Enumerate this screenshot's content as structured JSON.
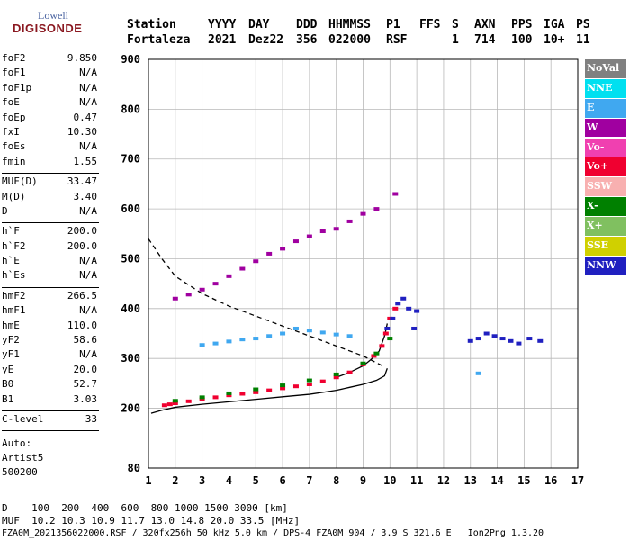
{
  "logo": {
    "line1": "Lowell",
    "line2": "DIGISONDE"
  },
  "header": {
    "labels": [
      "Station",
      "YYYY",
      "DAY",
      "DDD",
      "HHMMSS",
      "P1",
      "FFS",
      "S",
      "AXN",
      "PPS",
      "IGA",
      "PS"
    ],
    "values": [
      "Fortaleza",
      "2021",
      "Dez22",
      "356",
      "022000",
      "RSF",
      "1",
      "714",
      "100",
      "10+",
      "11"
    ]
  },
  "params_group1": [
    {
      "k": "foF2",
      "v": "9.850"
    },
    {
      "k": "foF1",
      "v": "N/A"
    },
    {
      "k": "foF1p",
      "v": "N/A"
    },
    {
      "k": "foE",
      "v": "N/A"
    },
    {
      "k": "foEp",
      "v": "0.47"
    },
    {
      "k": "fxI",
      "v": "10.30"
    },
    {
      "k": "foEs",
      "v": "N/A"
    },
    {
      "k": "fmin",
      "v": "1.55"
    }
  ],
  "params_group2": [
    {
      "k": "MUF(D)",
      "v": "33.47"
    },
    {
      "k": "M(D)",
      "v": "3.40"
    },
    {
      "k": "D",
      "v": "N/A"
    }
  ],
  "params_group3": [
    {
      "k": "h`F",
      "v": "200.0"
    },
    {
      "k": "h`F2",
      "v": "200.0"
    },
    {
      "k": "h`E",
      "v": "N/A"
    },
    {
      "k": "h`Es",
      "v": "N/A"
    }
  ],
  "params_group4": [
    {
      "k": "hmF2",
      "v": "266.5"
    },
    {
      "k": "hmF1",
      "v": "N/A"
    },
    {
      "k": "hmE",
      "v": "110.0"
    },
    {
      "k": "yF2",
      "v": "58.6"
    },
    {
      "k": "yF1",
      "v": "N/A"
    },
    {
      "k": "yE",
      "v": "20.0"
    },
    {
      "k": "B0",
      "v": "52.7"
    },
    {
      "k": "B1",
      "v": "3.03"
    }
  ],
  "params_group5": [
    {
      "k": "C-level",
      "v": "33"
    }
  ],
  "auto": {
    "line1": "Auto:",
    "line2": "Artist5",
    "line3": "500200"
  },
  "legend": [
    {
      "label": "NoVal",
      "color": "#808080"
    },
    {
      "label": "NNE",
      "color": "#00e0f0"
    },
    {
      "label": "E",
      "color": "#40a8f0"
    },
    {
      "label": "W",
      "color": "#a000a0"
    },
    {
      "label": "Vo-",
      "color": "#f040b0"
    },
    {
      "label": "Vo+",
      "color": "#f00030"
    },
    {
      "label": "SSW",
      "color": "#f8b0b0"
    },
    {
      "label": "X-",
      "color": "#008000"
    },
    {
      "label": "X+",
      "color": "#80c060"
    },
    {
      "label": "SSE",
      "color": "#d0d000"
    },
    {
      "label": "NNW",
      "color": "#2020c0"
    }
  ],
  "footer": {
    "line1": "D    100  200  400  600  800 1000 1500 3000 [km]",
    "line2": "MUF  10.2 10.3 10.9 11.7 13.0 14.8 20.0 33.5 [MHz]",
    "line3": "FZA0M_2021356022000.RSF / 320fx256h 50 kHz 5.0 km / DPS-4 FZA0M 904 / 3.9 S 321.6 E   Ion2Png 1.3.20"
  },
  "chart_data": {
    "type": "scatter",
    "xlim": [
      1,
      17
    ],
    "ylim": [
      80,
      900
    ],
    "x_ticks": [
      1,
      2,
      3,
      4,
      5,
      6,
      7,
      8,
      9,
      10,
      11,
      12,
      13,
      14,
      15,
      16,
      17
    ],
    "y_ticks": [
      80,
      200,
      300,
      400,
      500,
      600,
      700,
      800,
      900
    ],
    "grid": true,
    "series": [
      {
        "name": "Vo+",
        "color": "#f00030",
        "x": [
          1.6,
          1.8,
          2.0,
          2.5,
          3.0,
          3.5,
          4.0,
          4.5,
          5.0,
          5.5,
          6.0,
          6.5,
          7.0,
          7.5,
          8.0,
          8.5,
          9.0,
          9.4,
          9.7,
          9.85,
          10.0,
          10.2
        ],
        "y": [
          206,
          208,
          210,
          214,
          218,
          222,
          226,
          229,
          232,
          236,
          240,
          244,
          248,
          254,
          262,
          272,
          288,
          305,
          325,
          350,
          380,
          400
        ]
      },
      {
        "name": "NNW",
        "color": "#2020c0",
        "x": [
          9.9,
          10.1,
          10.3,
          10.5,
          10.7,
          10.9,
          11.0,
          13.0,
          13.3,
          13.6,
          13.9,
          14.2,
          14.5,
          14.8,
          15.2,
          15.6
        ],
        "y": [
          360,
          380,
          410,
          420,
          400,
          360,
          395,
          335,
          340,
          350,
          345,
          340,
          335,
          330,
          340,
          335
        ]
      },
      {
        "name": "E",
        "color": "#40a8f0",
        "x": [
          3.0,
          3.5,
          4.0,
          4.5,
          5.0,
          5.5,
          6.0,
          6.5,
          7.0,
          7.5,
          8.0,
          8.5,
          13.3
        ],
        "y": [
          327,
          330,
          334,
          338,
          340,
          345,
          350,
          360,
          356,
          352,
          348,
          345,
          270
        ]
      },
      {
        "name": "W",
        "color": "#a000a0",
        "x": [
          2.0,
          2.5,
          3.0,
          3.5,
          4.0,
          4.5,
          5.0,
          5.5,
          6.0,
          6.5,
          7.0,
          7.5,
          8.0,
          8.5,
          9.0,
          9.5,
          10.2
        ],
        "y": [
          420,
          428,
          438,
          450,
          465,
          480,
          495,
          510,
          520,
          535,
          545,
          555,
          560,
          575,
          590,
          600,
          630
        ]
      },
      {
        "name": "X-",
        "color": "#008000",
        "x": [
          2.0,
          3.0,
          4.0,
          5.0,
          6.0,
          7.0,
          8.0,
          9.0,
          9.5,
          10.0
        ],
        "y": [
          215,
          222,
          230,
          238,
          246,
          256,
          268,
          290,
          310,
          340
        ]
      }
    ],
    "lines": [
      {
        "name": "",
        "style": "solid",
        "color": "#000000",
        "x": [
          1.1,
          1.5,
          2.0,
          3.0,
          4.0,
          5.0,
          6.0,
          7.0,
          7.5,
          8.0,
          8.5,
          9.0,
          9.5,
          9.8,
          9.9
        ],
        "y": [
          190,
          196,
          202,
          208,
          213,
          218,
          223,
          228,
          232,
          236,
          242,
          248,
          256,
          265,
          280
        ]
      },
      {
        "name": "",
        "style": "dashed",
        "color": "#000000",
        "x": [
          1.0,
          1.5,
          2.0,
          3.0,
          4.0,
          5.0,
          6.0,
          7.0,
          8.0,
          9.0,
          9.8
        ],
        "y": [
          540,
          500,
          465,
          430,
          405,
          385,
          365,
          345,
          325,
          305,
          283
        ]
      },
      {
        "name": "",
        "style": "solid",
        "color": "#000000",
        "x": [
          8.0,
          8.5,
          9.0,
          9.3,
          9.6,
          9.8,
          9.9
        ],
        "y": [
          262,
          272,
          285,
          298,
          315,
          345,
          370
        ]
      }
    ]
  }
}
